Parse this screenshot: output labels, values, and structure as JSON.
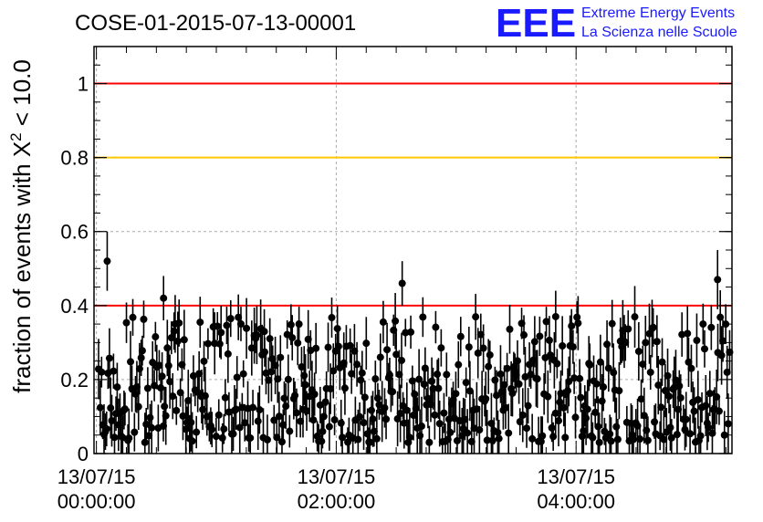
{
  "chart_data": {
    "type": "scatter",
    "title": "COSE-01-2015-07-13-00001",
    "ylabel_prefix": "fraction of events with X",
    "ylabel_sup": "2",
    "ylabel_suffix": " < 10.0",
    "xlabel": "",
    "x_unit": "hours since 13/07/15 00:00:00",
    "xlim": [
      -0.02,
      5.3
    ],
    "ylim": [
      0,
      1.1
    ],
    "y_ticks": [
      0,
      0.2,
      0.4,
      0.6,
      0.8,
      1
    ],
    "y_tick_labels": [
      "0",
      "0.2",
      "0.4",
      "0.6",
      "0.8",
      "1"
    ],
    "x_ticks": [
      0,
      2,
      4
    ],
    "x_tick_labels": [
      {
        "date": "13/07/15",
        "time": "00:00:00"
      },
      {
        "date": "13/07/15",
        "time": "02:00:00"
      },
      {
        "date": "13/07/15",
        "time": "04:00:00"
      }
    ],
    "grid": true,
    "reference_lines": [
      {
        "y": 1.0,
        "color": "#ff0000"
      },
      {
        "y": 0.8,
        "color": "#ffc800"
      },
      {
        "y": 0.4,
        "color": "#ff0000"
      }
    ],
    "notable_points": [
      {
        "x": 0.09,
        "y": 0.52,
        "err": 0.08
      },
      {
        "x": 0.56,
        "y": 0.42,
        "err": 0.06
      },
      {
        "x": 2.55,
        "y": 0.46,
        "err": 0.06
      },
      {
        "x": 5.18,
        "y": 0.47,
        "err": 0.08
      },
      {
        "x": 3.83,
        "y": 0.37,
        "err": 0.07
      },
      {
        "x": 1.4,
        "y": 0.33,
        "err": 0.06
      }
    ],
    "series": [
      {
        "n_points": 480,
        "typical_y_range": [
          0.03,
          0.37
        ],
        "mean_y": 0.18,
        "typical_error": 0.06
      }
    ]
  },
  "logo": {
    "letters": "EEE",
    "line1": "Extreme Energy Events",
    "line2": "La Scienza nelle Scuole"
  },
  "colors": {
    "axis": "#000000",
    "grid": "#aaaaaa",
    "points": "#000000",
    "logo": "#1a1aff"
  }
}
